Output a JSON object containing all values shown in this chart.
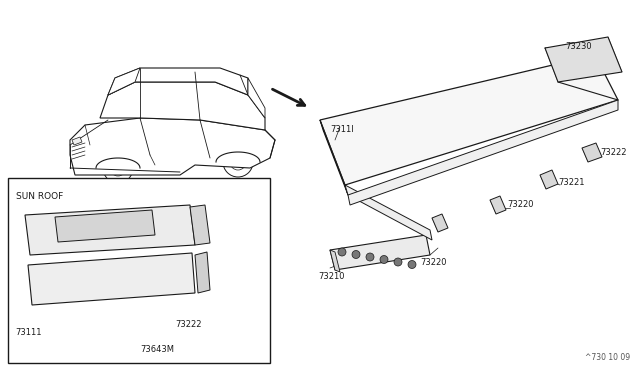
{
  "bg_color": "#ffffff",
  "fig_width": 6.4,
  "fig_height": 3.72,
  "dpi": 100,
  "footer": "^730 10 09",
  "label_fontsize": 6.0,
  "footer_fontsize": 5.5,
  "sun_roof_label": "SUN ROOF"
}
